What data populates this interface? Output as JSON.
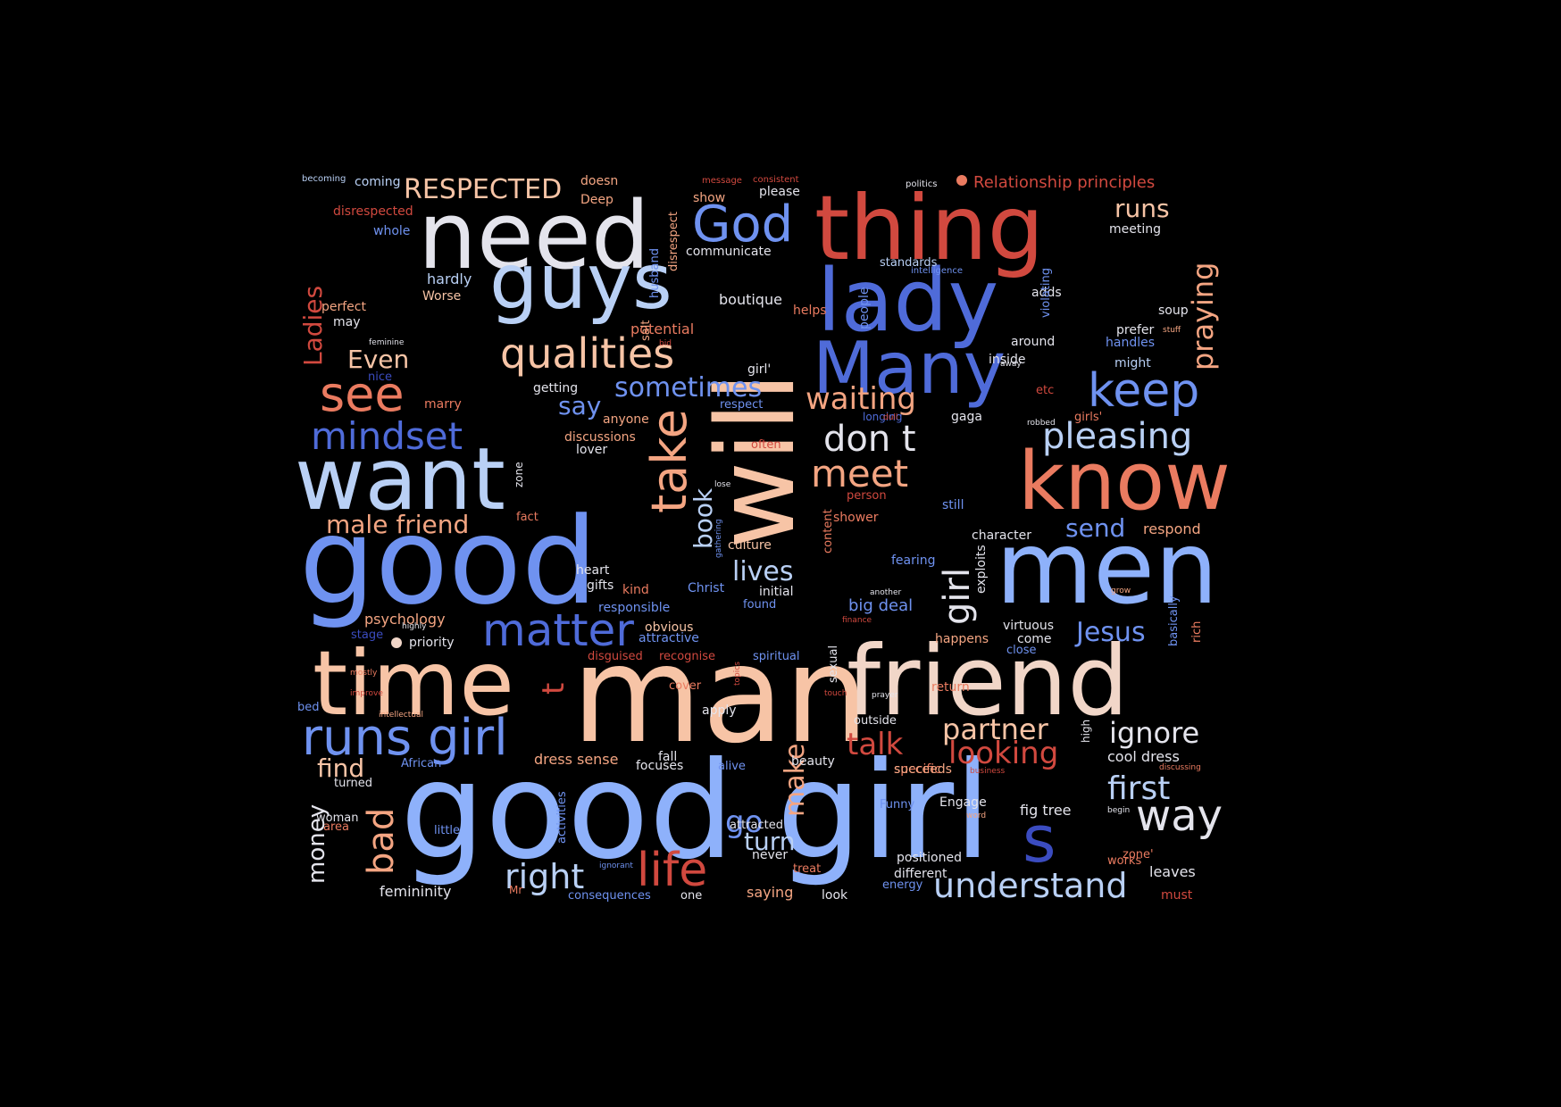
{
  "palette": {
    "red": "#d1493f",
    "coral": "#ea7b60",
    "salmon": "#f4a582",
    "peach": "#f7c4a6",
    "pale": "#f1d6c8",
    "white": "#e4e4ec",
    "lightblue": "#b9d0f5",
    "blue": "#8eb1fb",
    "mid": "#6f92f0",
    "royal": "#4f6bd9",
    "navy": "#3b4cc0"
  },
  "words": [
    {
      "text": "good girl"
    },
    {
      "text": "man"
    },
    {
      "text": "good"
    },
    {
      "text": "friend"
    },
    {
      "text": "time"
    },
    {
      "text": "men"
    },
    {
      "text": "will"
    },
    {
      "text": "want"
    },
    {
      "text": "know"
    },
    {
      "text": "thing"
    },
    {
      "text": "need"
    },
    {
      "text": "lady"
    },
    {
      "text": "guys"
    },
    {
      "text": "Many"
    },
    {
      "text": "runs girl"
    },
    {
      "text": "matter"
    },
    {
      "text": "qualities"
    },
    {
      "text": "keep"
    },
    {
      "text": "see"
    },
    {
      "text": "take"
    },
    {
      "text": "life"
    },
    {
      "text": "way"
    },
    {
      "text": "God"
    },
    {
      "text": "mindset"
    },
    {
      "text": "pleasing"
    },
    {
      "text": "understand"
    },
    {
      "text": "meet"
    },
    {
      "text": "don t"
    },
    {
      "text": "right"
    },
    {
      "text": "s"
    },
    {
      "text": "bad"
    },
    {
      "text": "girl"
    },
    {
      "text": "waiting"
    },
    {
      "text": "first"
    },
    {
      "text": "sometimes"
    },
    {
      "text": "talk"
    },
    {
      "text": "ignore"
    },
    {
      "text": "looking"
    },
    {
      "text": "partner"
    },
    {
      "text": "Jesus"
    },
    {
      "text": "praying"
    },
    {
      "text": "male friend"
    },
    {
      "text": "lives"
    },
    {
      "text": "make"
    },
    {
      "text": "RESPECTED"
    },
    {
      "text": "book"
    },
    {
      "text": "turn"
    },
    {
      "text": "runs"
    },
    {
      "text": "find"
    },
    {
      "text": "send"
    },
    {
      "text": "go"
    },
    {
      "text": "Even"
    },
    {
      "text": "Ladies"
    },
    {
      "text": "money"
    },
    {
      "text": "say"
    },
    {
      "text": "Relationship principles"
    },
    {
      "text": "big deal"
    },
    {
      "text": "t"
    },
    {
      "text": "dress sense"
    },
    {
      "text": "psychology"
    },
    {
      "text": "boutique"
    },
    {
      "text": "femininity"
    },
    {
      "text": "hardly"
    },
    {
      "text": "respond"
    },
    {
      "text": "cool dress"
    },
    {
      "text": "fig tree"
    },
    {
      "text": "leaves"
    },
    {
      "text": "potential"
    },
    {
      "text": "coming"
    },
    {
      "text": "doesn"
    },
    {
      "text": "show"
    },
    {
      "text": "Deep"
    },
    {
      "text": "please"
    },
    {
      "text": "disrespected"
    },
    {
      "text": "whole"
    },
    {
      "text": "communicate"
    },
    {
      "text": "meeting"
    },
    {
      "text": "standards"
    },
    {
      "text": "adds"
    },
    {
      "text": "perfect"
    },
    {
      "text": "Worse"
    },
    {
      "text": "helps"
    },
    {
      "text": "soup"
    },
    {
      "text": "may"
    },
    {
      "text": "prefer"
    },
    {
      "text": "handles"
    },
    {
      "text": "around"
    },
    {
      "text": "inside"
    },
    {
      "text": "might"
    },
    {
      "text": "nice"
    },
    {
      "text": "getting"
    },
    {
      "text": "girl'"
    },
    {
      "text": "marry"
    },
    {
      "text": "respect"
    },
    {
      "text": "etc"
    },
    {
      "text": "anyone"
    },
    {
      "text": "gaga"
    },
    {
      "text": "girls'"
    },
    {
      "text": "longing"
    },
    {
      "text": "discussions"
    },
    {
      "text": "lover"
    },
    {
      "text": "often"
    },
    {
      "text": "person"
    },
    {
      "text": "fact"
    },
    {
      "text": "shower"
    },
    {
      "text": "still"
    },
    {
      "text": "character"
    },
    {
      "text": "culture"
    },
    {
      "text": "fearing"
    },
    {
      "text": "heart"
    },
    {
      "text": "Christ"
    },
    {
      "text": "gifts"
    },
    {
      "text": "kind"
    },
    {
      "text": "initial"
    },
    {
      "text": "found"
    },
    {
      "text": "responsible"
    },
    {
      "text": "virtuous"
    },
    {
      "text": "obvious"
    },
    {
      "text": "attractive"
    },
    {
      "text": "stage"
    },
    {
      "text": "priority"
    },
    {
      "text": "come"
    },
    {
      "text": "close"
    },
    {
      "text": "happens"
    },
    {
      "text": "disguised"
    },
    {
      "text": "recognise"
    },
    {
      "text": "spiritual"
    },
    {
      "text": "return"
    },
    {
      "text": "cover"
    },
    {
      "text": "apply"
    },
    {
      "text": "outside"
    },
    {
      "text": "bed"
    },
    {
      "text": "specific"
    },
    {
      "text": "succeeds"
    },
    {
      "text": "African"
    },
    {
      "text": "fall"
    },
    {
      "text": "focuses"
    },
    {
      "text": "alive"
    },
    {
      "text": "beauty"
    },
    {
      "text": "turned"
    },
    {
      "text": "woman"
    },
    {
      "text": "area"
    },
    {
      "text": "little"
    },
    {
      "text": "attracted"
    },
    {
      "text": "Funny"
    },
    {
      "text": "Engage"
    },
    {
      "text": "never"
    },
    {
      "text": "treat"
    },
    {
      "text": "positioned"
    },
    {
      "text": "works"
    },
    {
      "text": "zone'"
    },
    {
      "text": "different"
    },
    {
      "text": "energy"
    },
    {
      "text": "saying"
    },
    {
      "text": "look"
    },
    {
      "text": "must"
    },
    {
      "text": "consequences"
    },
    {
      "text": "one"
    },
    {
      "text": "Mr"
    },
    {
      "text": "becoming"
    },
    {
      "text": "message"
    },
    {
      "text": "consistent"
    },
    {
      "text": "politics"
    },
    {
      "text": "intelligence"
    },
    {
      "text": "feminine"
    },
    {
      "text": "bid"
    },
    {
      "text": "stuff"
    },
    {
      "text": "away"
    },
    {
      "text": "robbed"
    },
    {
      "text": "dull"
    },
    {
      "text": "lose"
    },
    {
      "text": "another"
    },
    {
      "text": "grow"
    },
    {
      "text": "finance"
    },
    {
      "text": "highly"
    },
    {
      "text": "mostly"
    },
    {
      "text": "improve"
    },
    {
      "text": "intellectual"
    },
    {
      "text": "touch"
    },
    {
      "text": "prayer"
    },
    {
      "text": "business"
    },
    {
      "text": "discussing"
    },
    {
      "text": "word"
    },
    {
      "text": "begin"
    },
    {
      "text": "ignorant"
    },
    {
      "text": "salt"
    },
    {
      "text": "husband"
    },
    {
      "text": "disrespect"
    },
    {
      "text": "zone"
    },
    {
      "text": "gathering"
    },
    {
      "text": "content"
    },
    {
      "text": "sexual"
    },
    {
      "text": "topics"
    },
    {
      "text": "people"
    },
    {
      "text": "violating"
    },
    {
      "text": "exploits"
    },
    {
      "text": "basically"
    },
    {
      "text": "rich"
    },
    {
      "text": "high"
    },
    {
      "text": "activities"
    }
  ]
}
